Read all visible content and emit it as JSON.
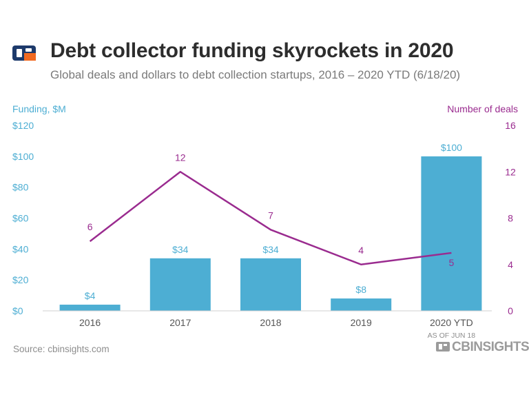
{
  "header": {
    "title": "Debt collector funding skyrockets in 2020",
    "subtitle": "Global deals and dollars to debt collection startups, 2016 – 2020 YTD (6/18/20)"
  },
  "footer": {
    "source": "Source: cbinsights.com",
    "brand": "CBINSIGHTS"
  },
  "chart_data": {
    "type": "bar",
    "categories": [
      "2016",
      "2017",
      "2018",
      "2019",
      "2020 YTD"
    ],
    "category_note": "AS OF JUN 18",
    "series": [
      {
        "name": "Funding, $M",
        "kind": "bar",
        "axis": "left",
        "values": [
          4,
          34,
          34,
          8,
          100
        ],
        "labels": [
          "$4",
          "$34",
          "$34",
          "$8",
          "$100"
        ],
        "color": "#4daed3"
      },
      {
        "name": "Number of deals",
        "kind": "line",
        "axis": "right",
        "values": [
          6,
          12,
          7,
          4,
          5
        ],
        "labels": [
          "6",
          "12",
          "7",
          "4",
          "5"
        ],
        "color": "#9a2b8f"
      }
    ],
    "y_left": {
      "label": "Funding, $M",
      "range": [
        0,
        120
      ],
      "ticks": [
        "$0",
        "$20",
        "$40",
        "$60",
        "$80",
        "$100",
        "$120"
      ],
      "color": "#4daed3"
    },
    "y_right": {
      "label": "Number of deals",
      "range": [
        0,
        16
      ],
      "ticks": [
        "0",
        "4",
        "8",
        "12",
        "16"
      ],
      "color": "#9a2b8f"
    }
  }
}
